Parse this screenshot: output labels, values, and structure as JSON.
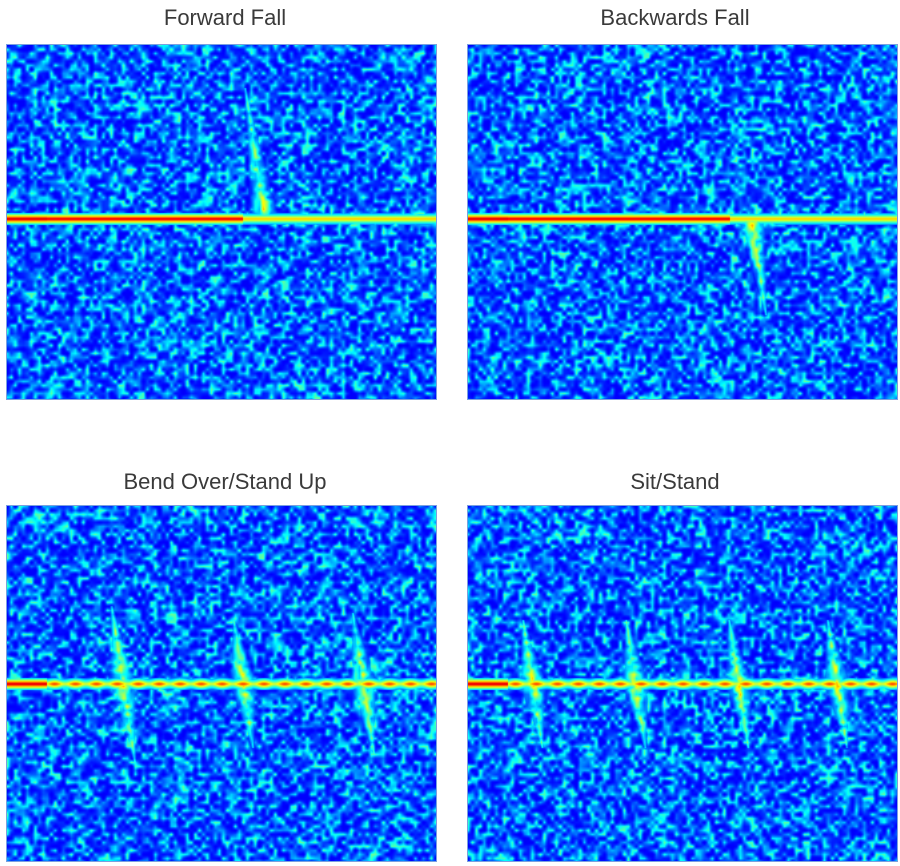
{
  "figure": {
    "panels": [
      {
        "id": "forward-fall",
        "title": "Forward Fall"
      },
      {
        "id": "backwards-fall",
        "title": "Backwards Fall"
      },
      {
        "id": "bend-over-stand-up",
        "title": "Bend Over/Stand Up"
      },
      {
        "id": "sit-stand",
        "title": "Sit/Stand"
      }
    ]
  },
  "chart_data": [
    {
      "type": "heatmap",
      "title": "Forward Fall",
      "xlabel": "",
      "ylabel": "",
      "colormap": "jet",
      "description": "Micro-Doppler spectrogram; strong red zero-Doppler line at mid-height; single positive-Doppler spike rising above the line near ~60% of time axis",
      "zero_line_y_frac": 0.49,
      "events": [
        {
          "t_frac": 0.6,
          "direction": "up",
          "extent_frac": 0.37
        }
      ]
    },
    {
      "type": "heatmap",
      "title": "Backwards Fall",
      "xlabel": "",
      "ylabel": "",
      "colormap": "jet",
      "description": "Micro-Doppler spectrogram; red zero-Doppler line, single negative-Doppler spike descending below line near ~65% of time axis",
      "zero_line_y_frac": 0.49,
      "events": [
        {
          "t_frac": 0.66,
          "direction": "down",
          "extent_frac": 0.27
        }
      ]
    },
    {
      "type": "heatmap",
      "title": "Bend Over/Stand Up",
      "xlabel": "",
      "ylabel": "",
      "colormap": "jet",
      "description": "Three bidirectional bursts (bend/stand cycles) along the zero-Doppler line",
      "zero_line_y_frac": 0.5,
      "events": [
        {
          "t_frac": 0.27,
          "direction": "both",
          "extent_frac": 0.22
        },
        {
          "t_frac": 0.55,
          "direction": "both",
          "extent_frac": 0.18
        },
        {
          "t_frac": 0.83,
          "direction": "both",
          "extent_frac": 0.2
        }
      ]
    },
    {
      "type": "heatmap",
      "title": "Sit/Stand",
      "xlabel": "",
      "ylabel": "",
      "colormap": "jet",
      "description": "Four up-then-down bursts (sit/stand cycles) along the zero-Doppler line",
      "zero_line_y_frac": 0.5,
      "events": [
        {
          "t_frac": 0.15,
          "direction": "both",
          "extent_frac": 0.18
        },
        {
          "t_frac": 0.39,
          "direction": "both",
          "extent_frac": 0.18
        },
        {
          "t_frac": 0.63,
          "direction": "both",
          "extent_frac": 0.18
        },
        {
          "t_frac": 0.86,
          "direction": "both",
          "extent_frac": 0.18
        }
      ]
    }
  ],
  "colors": {
    "background_low": "#0a2fb8",
    "noise_mid": "#18b8f0",
    "line_high": "#e23a12",
    "title_text": "#3a3a3a"
  }
}
